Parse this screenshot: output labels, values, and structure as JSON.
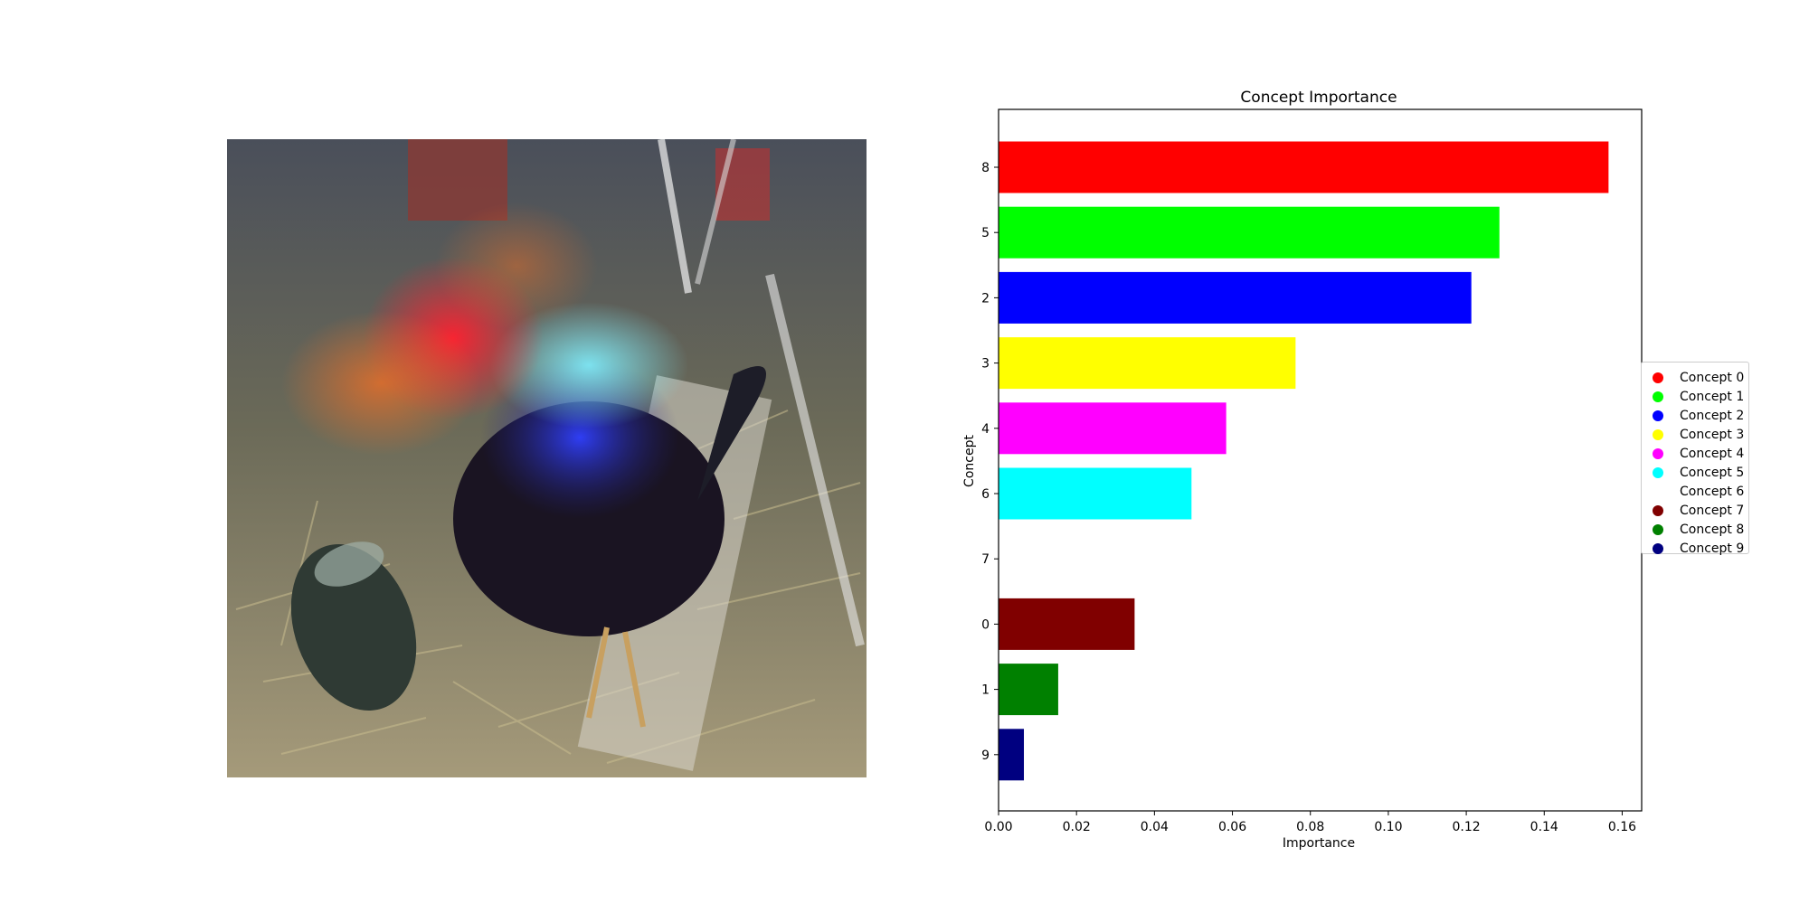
{
  "chart_data": {
    "type": "bar",
    "orientation": "horizontal",
    "title": "Concept Importance",
    "xlabel": "Importance",
    "ylabel": "Concept",
    "xlim": [
      0,
      0.165
    ],
    "xticks": [
      "0.00",
      "0.02",
      "0.04",
      "0.06",
      "0.08",
      "0.10",
      "0.12",
      "0.14",
      "0.16"
    ],
    "xtick_values": [
      0,
      0.02,
      0.04,
      0.06,
      0.08,
      0.1,
      0.12,
      0.14,
      0.16
    ],
    "categories": [
      "8",
      "5",
      "2",
      "3",
      "4",
      "6",
      "7",
      "0",
      "1",
      "9"
    ],
    "values": [
      0.1565,
      0.1285,
      0.1213,
      0.0762,
      0.0584,
      0.0495,
      0.0,
      0.0349,
      0.0153,
      0.0065
    ],
    "bar_colors": [
      "#ff0000",
      "#00ff00",
      "#0000ff",
      "#ffff00",
      "#ff00ff",
      "#00ffff",
      "#ffffff",
      "#800000",
      "#008000",
      "#000080"
    ],
    "legend_position": "center-right",
    "legend": [
      {
        "label": "Concept 0",
        "color": "#ff0000"
      },
      {
        "label": "Concept 1",
        "color": "#00ff00"
      },
      {
        "label": "Concept 2",
        "color": "#0000ff"
      },
      {
        "label": "Concept 3",
        "color": "#ffff00"
      },
      {
        "label": "Concept 4",
        "color": "#ff00ff"
      },
      {
        "label": "Concept 5",
        "color": "#00ffff"
      },
      {
        "label": "Concept 6",
        "color": "#ffffff"
      },
      {
        "label": "Concept 7",
        "color": "#800000"
      },
      {
        "label": "Concept 8",
        "color": "#008000"
      },
      {
        "label": "Concept 9",
        "color": "#000080"
      }
    ]
  },
  "image_panel": {
    "subject": "rooster-in-barn-photo"
  }
}
